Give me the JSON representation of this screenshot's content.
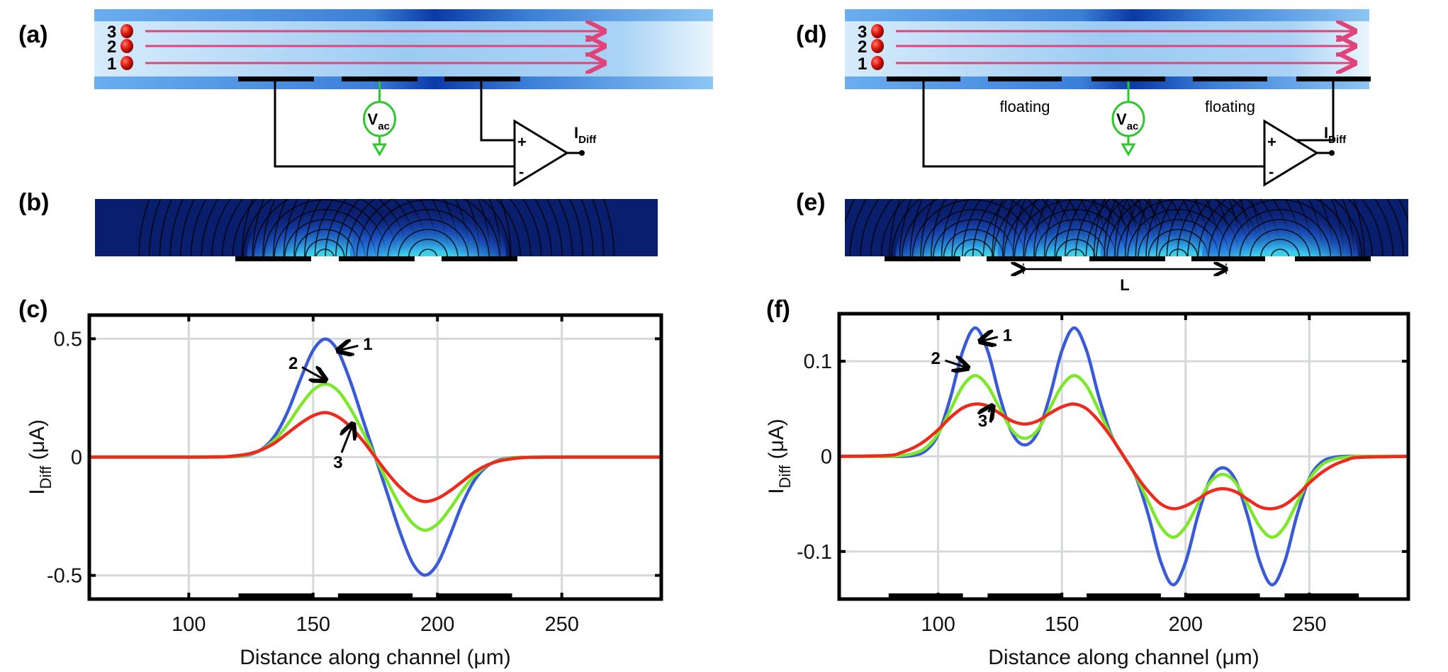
{
  "panels": {
    "a": "(a)",
    "b": "(b)",
    "c": "(c)",
    "d": "(d)",
    "e": "(e)",
    "f": "(f)"
  },
  "schematic": {
    "particle_labels": [
      "3",
      "2",
      "1"
    ],
    "source_label": "V",
    "source_sub": "ac",
    "output_label": "I",
    "output_sub": "Diff",
    "plus": "+",
    "minus": "-",
    "floating_label": "floating",
    "length_label": "L"
  },
  "colors": {
    "series1": "#3a5bd9",
    "series2": "#7de82a",
    "series3": "#ee2a1e",
    "arrow": "#e0457a",
    "source": "#2ec82e"
  },
  "chart_data": [
    {
      "type": "line",
      "panel": "c",
      "xlabel": "Distance along channel (μm)",
      "ylabel_main": "I",
      "ylabel_sub": "Diff",
      "ylabel_unit": " (μA)",
      "xlim": [
        60,
        290
      ],
      "ylim": [
        -0.6,
        0.6
      ],
      "xticks": [
        100,
        150,
        200,
        250
      ],
      "yticks": [
        -0.5,
        0,
        0.5
      ],
      "ytick_labels": [
        "-0.5",
        "0",
        "0.5"
      ],
      "grid": true,
      "electrodes": [
        [
          120,
          150
        ],
        [
          160,
          190
        ],
        [
          200,
          230
        ]
      ],
      "x": [
        60,
        100,
        110,
        115,
        120,
        125,
        130,
        135,
        140,
        145,
        150,
        155,
        160,
        165,
        170,
        175,
        180,
        185,
        190,
        195,
        200,
        205,
        210,
        215,
        220,
        225,
        230,
        235,
        240,
        250,
        290
      ],
      "series": [
        {
          "label": "1",
          "values": [
            0,
            0,
            0,
            0.001,
            0.003,
            0.012,
            0.038,
            0.096,
            0.197,
            0.331,
            0.451,
            0.499,
            0.448,
            0.319,
            0.159,
            0,
            -0.159,
            -0.319,
            -0.448,
            -0.499,
            -0.451,
            -0.331,
            -0.197,
            -0.096,
            -0.038,
            -0.012,
            -0.003,
            -0.001,
            0,
            0,
            0
          ]
        },
        {
          "label": "2",
          "values": [
            0,
            0,
            0,
            0.001,
            0.004,
            0.014,
            0.035,
            0.077,
            0.142,
            0.219,
            0.283,
            0.309,
            0.28,
            0.205,
            0.107,
            0,
            -0.107,
            -0.205,
            -0.28,
            -0.309,
            -0.283,
            -0.219,
            -0.142,
            -0.077,
            -0.035,
            -0.014,
            -0.004,
            -0.001,
            0,
            0,
            0
          ]
        },
        {
          "label": "3",
          "values": [
            0,
            0,
            0.001,
            0.002,
            0.007,
            0.016,
            0.034,
            0.063,
            0.103,
            0.143,
            0.175,
            0.188,
            0.17,
            0.128,
            0.069,
            0,
            -0.069,
            -0.128,
            -0.17,
            -0.188,
            -0.175,
            -0.143,
            -0.103,
            -0.063,
            -0.034,
            -0.016,
            -0.007,
            -0.002,
            -0.001,
            0,
            0
          ]
        }
      ],
      "annotations": [
        {
          "text": "1",
          "at": [
            172,
            0.48
          ],
          "to": [
            160,
            0.45
          ]
        },
        {
          "text": "2",
          "at": [
            142,
            0.4
          ],
          "to": [
            155,
            0.325
          ]
        },
        {
          "text": "3",
          "at": [
            160,
            -0.02
          ],
          "to": [
            166,
            0.14
          ]
        }
      ]
    },
    {
      "type": "line",
      "panel": "f",
      "xlabel": "Distance along channel (μm)",
      "ylabel_main": "I",
      "ylabel_sub": "Diff",
      "ylabel_unit": " (μA)",
      "xlim": [
        60,
        290
      ],
      "ylim": [
        -0.15,
        0.15
      ],
      "xticks": [
        100,
        150,
        200,
        250
      ],
      "yticks": [
        -0.1,
        0,
        0.1
      ],
      "ytick_labels": [
        "-0.1",
        "0",
        "0.1"
      ],
      "grid": true,
      "electrodes": [
        [
          80,
          110
        ],
        [
          120,
          150
        ],
        [
          160,
          190
        ],
        [
          200,
          230
        ],
        [
          240,
          270
        ]
      ],
      "x": [
        60,
        80,
        85,
        90,
        95,
        100,
        105,
        110,
        115,
        120,
        125,
        130,
        135,
        140,
        145,
        150,
        155,
        160,
        165,
        170,
        175,
        180,
        185,
        190,
        195,
        200,
        205,
        210,
        215,
        220,
        225,
        230,
        235,
        240,
        245,
        250,
        255,
        260,
        265,
        270,
        290
      ],
      "series": [
        {
          "label": "1",
          "values": [
            0,
            0,
            0,
            0.001,
            0.006,
            0.023,
            0.062,
            0.111,
            0.135,
            0.111,
            0.062,
            0.024,
            0.012,
            0.024,
            0.062,
            0.111,
            0.135,
            0.111,
            0.062,
            0.022,
            0,
            -0.022,
            -0.062,
            -0.111,
            -0.135,
            -0.111,
            -0.062,
            -0.024,
            -0.012,
            -0.024,
            -0.062,
            -0.111,
            -0.135,
            -0.111,
            -0.062,
            -0.023,
            -0.006,
            -0.001,
            0,
            0,
            0
          ]
        },
        {
          "label": "2",
          "values": [
            0,
            0,
            0.001,
            0.003,
            0.009,
            0.024,
            0.049,
            0.074,
            0.085,
            0.074,
            0.05,
            0.027,
            0.019,
            0.027,
            0.05,
            0.074,
            0.085,
            0.074,
            0.048,
            0.021,
            0,
            -0.021,
            -0.048,
            -0.074,
            -0.085,
            -0.074,
            -0.05,
            -0.027,
            -0.019,
            -0.027,
            -0.05,
            -0.074,
            -0.085,
            -0.074,
            -0.049,
            -0.024,
            -0.009,
            -0.003,
            -0.001,
            0,
            0
          ]
        },
        {
          "label": "3",
          "values": [
            0,
            0.001,
            0.004,
            0.009,
            0.017,
            0.028,
            0.041,
            0.051,
            0.055,
            0.053,
            0.045,
            0.037,
            0.034,
            0.037,
            0.045,
            0.052,
            0.055,
            0.05,
            0.037,
            0.02,
            0,
            -0.02,
            -0.037,
            -0.05,
            -0.055,
            -0.052,
            -0.045,
            -0.037,
            -0.034,
            -0.037,
            -0.045,
            -0.053,
            -0.055,
            -0.051,
            -0.041,
            -0.028,
            -0.017,
            -0.009,
            -0.004,
            -0.001,
            0
          ]
        }
      ],
      "annotations": [
        {
          "text": "1",
          "at": [
            128,
            0.128
          ],
          "to": [
            117,
            0.121
          ]
        },
        {
          "text": "2",
          "at": [
            99,
            0.104
          ],
          "to": [
            112,
            0.093
          ]
        },
        {
          "text": "3",
          "at": [
            118,
            0.038
          ],
          "to": [
            122,
            0.053
          ]
        }
      ]
    }
  ]
}
